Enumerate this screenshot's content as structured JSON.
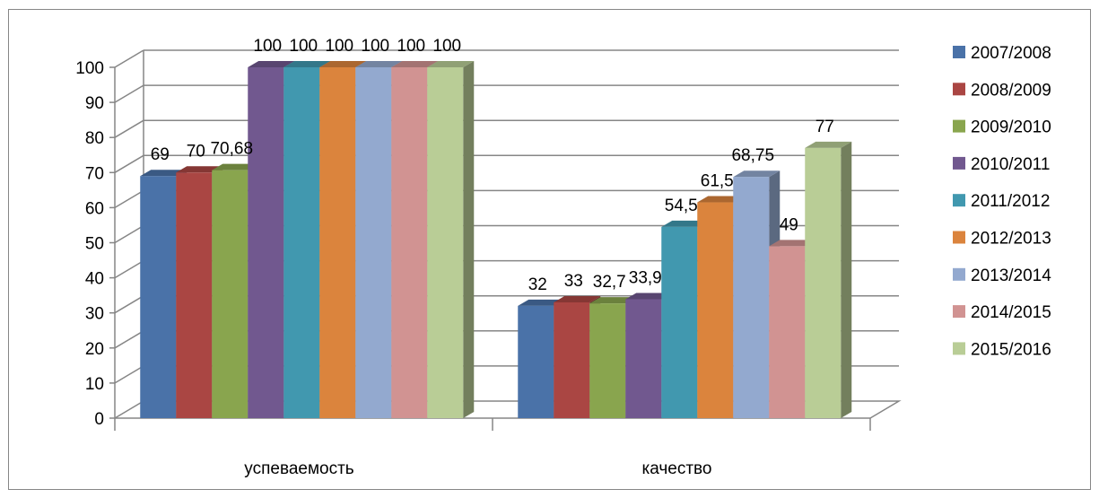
{
  "chart_data": {
    "type": "bar",
    "style": "3d-clustered-column",
    "categories": [
      "успеваемость",
      "качество"
    ],
    "series": [
      {
        "name": "2007/2008",
        "color": "#4A72A8",
        "values": [
          69,
          32
        ],
        "labels": [
          "69",
          "32"
        ]
      },
      {
        "name": "2008/2009",
        "color": "#AA4643",
        "values": [
          70,
          33
        ],
        "labels": [
          "70",
          "33"
        ]
      },
      {
        "name": "2009/2010",
        "color": "#89A54E",
        "values": [
          70.68,
          32.7
        ],
        "labels": [
          "70,68",
          "32,7"
        ]
      },
      {
        "name": "2010/2011",
        "color": "#71588F",
        "values": [
          100,
          33.9
        ],
        "labels": [
          "100",
          "33,9"
        ]
      },
      {
        "name": "2011/2012",
        "color": "#4198AF",
        "values": [
          100,
          54.5
        ],
        "labels": [
          "100",
          "54,5"
        ]
      },
      {
        "name": "2012/2013",
        "color": "#DB843D",
        "values": [
          100,
          61.5
        ],
        "labels": [
          "100",
          "61,5"
        ]
      },
      {
        "name": "2013/2014",
        "color": "#93A9CF",
        "values": [
          100,
          68.75
        ],
        "labels": [
          "100",
          "68,75"
        ]
      },
      {
        "name": "2014/2015",
        "color": "#D19392",
        "values": [
          100,
          49
        ],
        "labels": [
          "100",
          "49"
        ]
      },
      {
        "name": "2015/2016",
        "color": "#B9CD96",
        "values": [
          100,
          77
        ],
        "labels": [
          "100",
          "77"
        ]
      }
    ],
    "yticks": [
      "0",
      "10",
      "20",
      "30",
      "40",
      "50",
      "60",
      "70",
      "80",
      "90",
      "100"
    ],
    "ylim": [
      0,
      100
    ],
    "grid": true,
    "legend_position": "right"
  }
}
